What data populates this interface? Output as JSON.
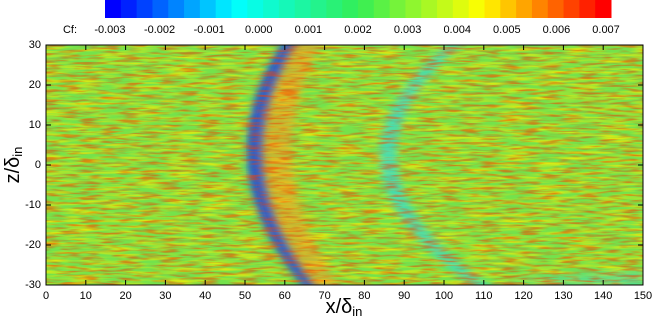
{
  "chart_data": {
    "type": "contour",
    "colorbar": {
      "label": "Cf:",
      "clim": [
        -0.0031,
        0.0071
      ],
      "levels": 32,
      "colormap": [
        "#0000ff",
        "#00ffff",
        "#33ee55",
        "#ffff00",
        "#ff0000"
      ],
      "ticks": [
        -0.003,
        -0.002,
        -0.001,
        {
          "value": 0,
          "label": "0.000"
        },
        0.001,
        0.002,
        0.003,
        0.004,
        0.005,
        0.006,
        0.007
      ]
    },
    "xlabel": {
      "main": "x/δ",
      "sub": "in"
    },
    "ylabel": {
      "main": "z/δ",
      "sub": "in"
    },
    "xlim": [
      0,
      150
    ],
    "xticks": [
      0,
      10,
      20,
      30,
      40,
      50,
      60,
      70,
      80,
      90,
      100,
      110,
      120,
      130,
      140,
      150
    ],
    "ylim": [
      -30,
      30
    ],
    "yticks": [
      -30,
      -20,
      -10,
      0,
      10,
      20,
      30
    ]
  }
}
